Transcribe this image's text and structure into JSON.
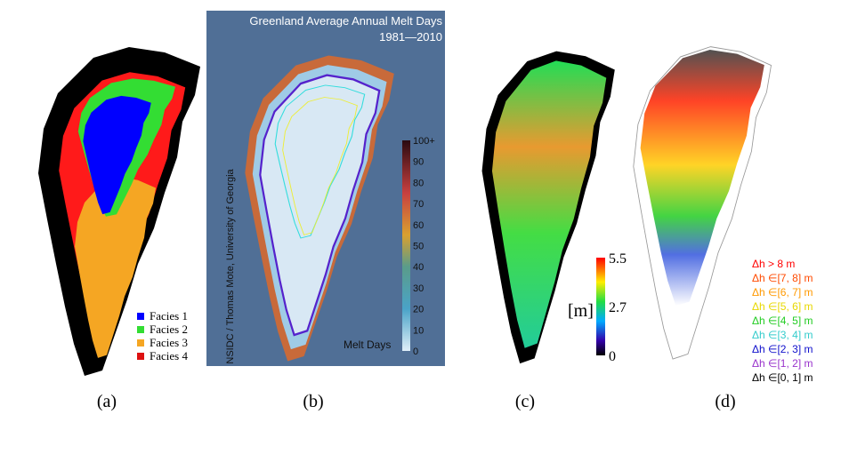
{
  "panel_a": {
    "legend": [
      {
        "label": "Facies 1",
        "color": "#0000ff"
      },
      {
        "label": "Facies 2",
        "color": "#33dd33"
      },
      {
        "label": "Facies 3",
        "color": "#f5a623"
      },
      {
        "label": "Facies 4",
        "color": "#dd1111"
      }
    ],
    "caption": "(a)"
  },
  "panel_b": {
    "title": "Greenland Average Annual Melt Days",
    "subtitle": "1981—2010",
    "credit": "NSIDC / Thomas Mote, University of Georgia",
    "colorbar_label": "Melt Days",
    "colorbar_ticks": [
      0,
      10,
      20,
      30,
      40,
      50,
      60,
      70,
      80,
      90,
      "100+"
    ],
    "caption": "(b)"
  },
  "panel_c": {
    "unit": "[m]",
    "colorbar_ticks": [
      0,
      2.7,
      5.5
    ],
    "caption": "(c)"
  },
  "panel_d": {
    "legend": [
      {
        "label": "Δh > 8 m",
        "color": "#ff0000"
      },
      {
        "label": "Δh ∈[7, 8] m",
        "color": "#ff4a00"
      },
      {
        "label": "Δh ∈[6, 7] m",
        "color": "#ff9900"
      },
      {
        "label": "Δh ∈[5, 6] m",
        "color": "#e8d800"
      },
      {
        "label": "Δh ∈[4, 5] m",
        "color": "#22cc22"
      },
      {
        "label": "Δh ∈[3, 4] m",
        "color": "#33cccc"
      },
      {
        "label": "Δh ∈[2, 3] m",
        "color": "#1010cc"
      },
      {
        "label": "Δh ∈[1, 2] m",
        "color": "#9933cc"
      },
      {
        "label": "Δh ∈[0, 1] m",
        "color": "#000000"
      }
    ],
    "caption": "(d)"
  }
}
